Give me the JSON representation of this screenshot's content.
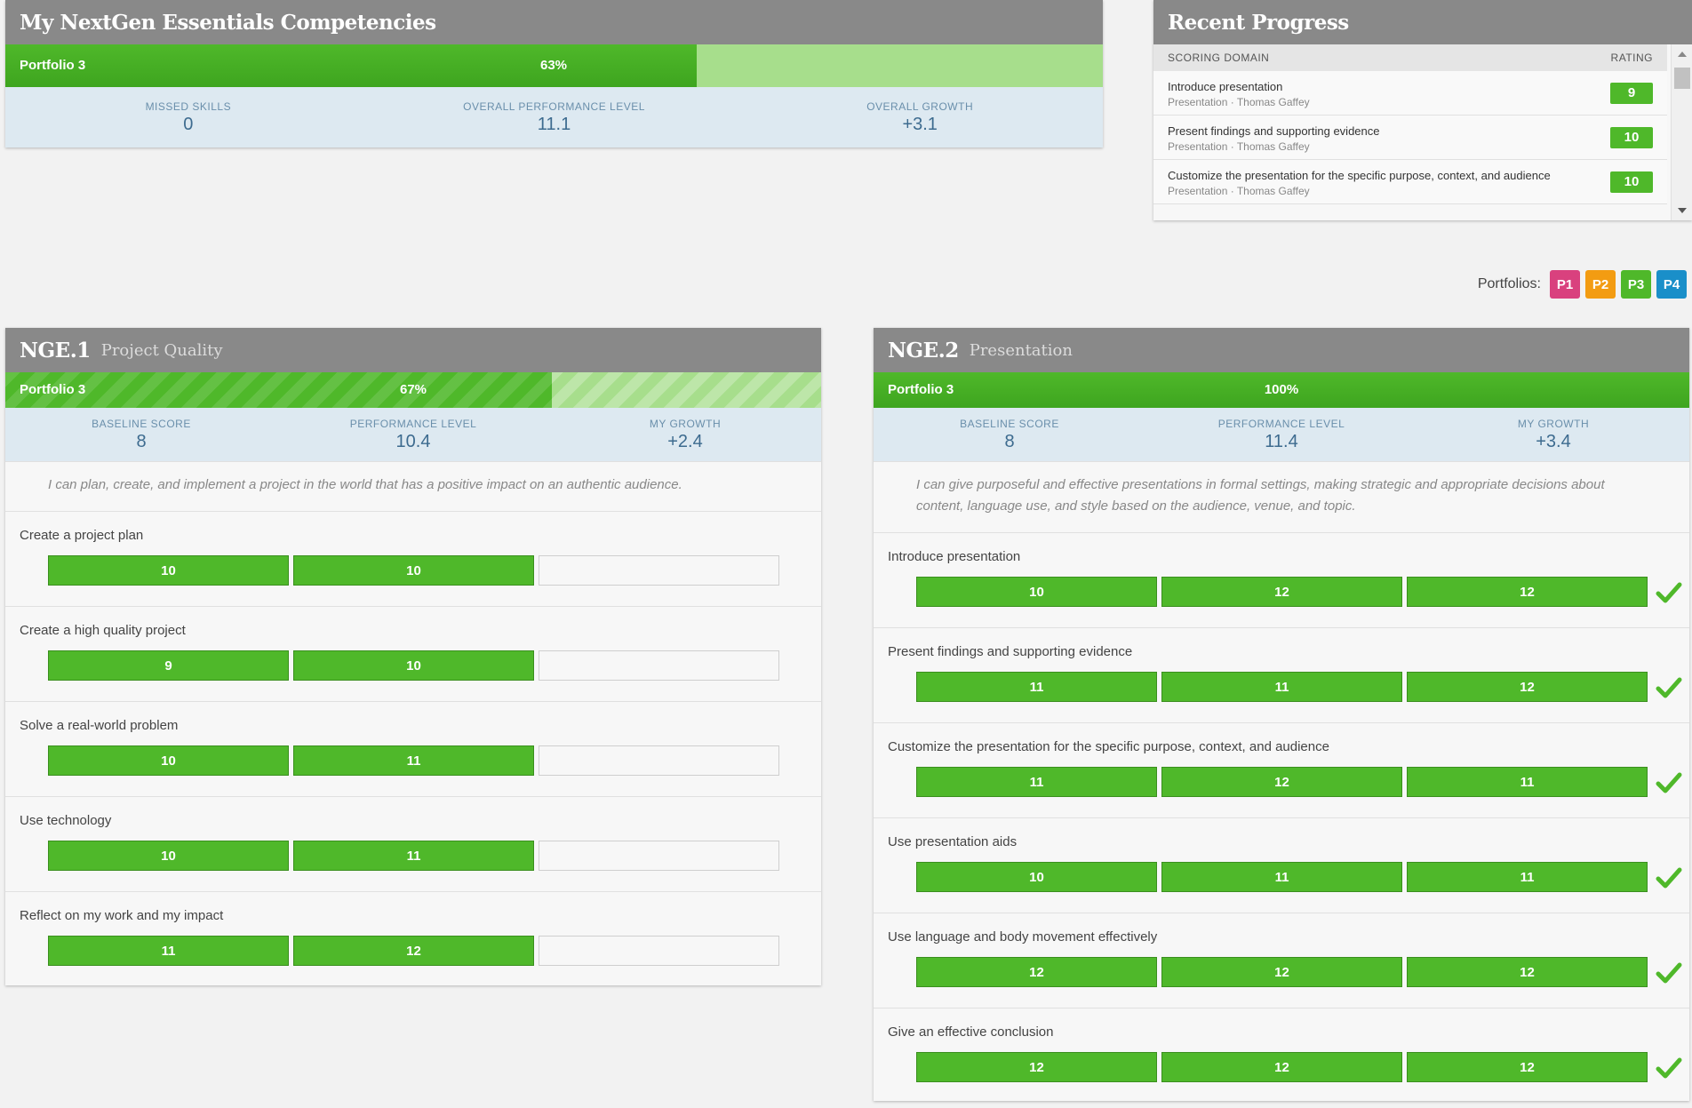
{
  "summary": {
    "title": "My NextGen Essentials Competencies",
    "progress": {
      "label": "Portfolio 3",
      "percent_text": "63%",
      "fraction": 0.63
    },
    "stats": [
      {
        "label": "MISSED SKILLS",
        "value": "0"
      },
      {
        "label": "OVERALL PERFORMANCE LEVEL",
        "value": "11.1"
      },
      {
        "label": "OVERALL GROWTH",
        "value": "+3.1"
      }
    ]
  },
  "recent": {
    "title": "Recent Progress",
    "col_domain": "SCORING DOMAIN",
    "col_rating": "RATING",
    "rows": [
      {
        "title": "Introduce presentation",
        "meta": "Presentation · Thomas Gaffey",
        "rating": "9"
      },
      {
        "title": "Present findings and supporting evidence",
        "meta": "Presentation · Thomas Gaffey",
        "rating": "10"
      },
      {
        "title": "Customize the presentation for the specific purpose, context, and audience",
        "meta": "Presentation · Thomas Gaffey",
        "rating": "10"
      }
    ]
  },
  "legend": {
    "label": "Portfolios:",
    "items": [
      {
        "text": "P1",
        "color": "#d9417e"
      },
      {
        "text": "P2",
        "color": "#f39c12"
      },
      {
        "text": "P3",
        "color": "#4fb82a"
      },
      {
        "text": "P4",
        "color": "#1a8fc9"
      }
    ]
  },
  "nge1": {
    "code": "NGE.1",
    "name": "Project Quality",
    "progress": {
      "label": "Portfolio 3",
      "percent_text": "67%",
      "fraction": 0.67
    },
    "stats": [
      {
        "label": "BASELINE SCORE",
        "value": "8"
      },
      {
        "label": "PERFORMANCE LEVEL",
        "value": "10.4"
      },
      {
        "label": "MY GROWTH",
        "value": "+2.4"
      }
    ],
    "description": "I can plan, create, and implement a project in the world that has a positive impact on an authentic audience.",
    "skills": [
      {
        "name": "Create a project plan",
        "scores": [
          "10",
          "10",
          ""
        ]
      },
      {
        "name": "Create a high quality project",
        "scores": [
          "9",
          "10",
          ""
        ]
      },
      {
        "name": "Solve a real-world problem",
        "scores": [
          "10",
          "11",
          ""
        ]
      },
      {
        "name": "Use technology",
        "scores": [
          "10",
          "11",
          ""
        ]
      },
      {
        "name": "Reflect on my work and my impact",
        "scores": [
          "11",
          "12",
          ""
        ]
      }
    ]
  },
  "nge2": {
    "code": "NGE.2",
    "name": "Presentation",
    "progress": {
      "label": "Portfolio 3",
      "percent_text": "100%",
      "fraction": 1.0
    },
    "stats": [
      {
        "label": "BASELINE SCORE",
        "value": "8"
      },
      {
        "label": "PERFORMANCE LEVEL",
        "value": "11.4"
      },
      {
        "label": "MY GROWTH",
        "value": "+3.4"
      }
    ],
    "description": "I can give purposeful and effective presentations in formal settings, making strategic and appropriate decisions about content, language use, and style based on the audience, venue, and topic.",
    "skills": [
      {
        "name": "Introduce presentation",
        "scores": [
          "10",
          "12",
          "12"
        ]
      },
      {
        "name": "Present findings and supporting evidence",
        "scores": [
          "11",
          "11",
          "12"
        ]
      },
      {
        "name": "Customize the presentation for the specific purpose, context, and audience",
        "scores": [
          "11",
          "12",
          "11"
        ]
      },
      {
        "name": "Use presentation aids",
        "scores": [
          "10",
          "11",
          "11"
        ]
      },
      {
        "name": "Use language and body movement effectively",
        "scores": [
          "12",
          "12",
          "12"
        ]
      },
      {
        "name": "Give an effective conclusion",
        "scores": [
          "12",
          "12",
          "12"
        ]
      }
    ]
  }
}
